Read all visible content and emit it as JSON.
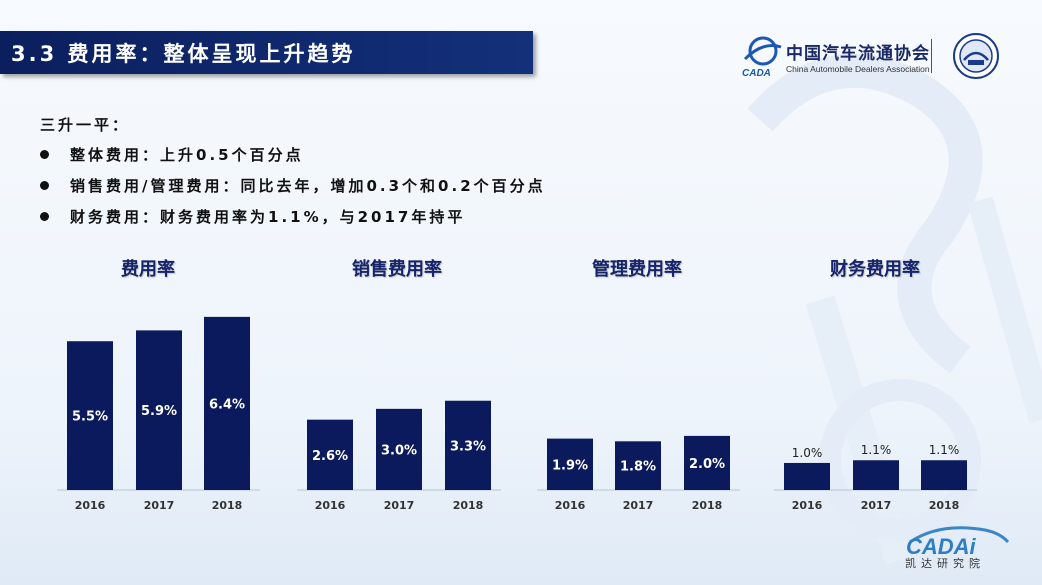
{
  "header": {
    "title": "3.3 费用率：整体呈现上升趋势",
    "org_name_cn": "中国汽车流通协会",
    "org_name_en": "China Automobile Dealers Association",
    "logo_text": "CADA"
  },
  "bullets": {
    "intro": "三升一平：",
    "items": [
      "整体费用：上升0.5个百分点",
      "销售费用/管理费用：同比去年，增加0.3个和0.2个百分点",
      "财务费用：财务费用率为1.1%，与2017年持平"
    ]
  },
  "colors": {
    "bar": "#0b1a5c",
    "title": "#16246b",
    "header_bg": "#0b1f5e"
  },
  "chart_data": [
    {
      "type": "bar",
      "title": "费用率",
      "categories": [
        "2016",
        "2017",
        "2018"
      ],
      "values": [
        5.5,
        5.9,
        6.4
      ],
      "labels": [
        "5.5%",
        "5.9%",
        "6.4%"
      ],
      "label_position": "inside"
    },
    {
      "type": "bar",
      "title": "销售费用率",
      "categories": [
        "2016",
        "2017",
        "2018"
      ],
      "values": [
        2.6,
        3.0,
        3.3
      ],
      "labels": [
        "2.6%",
        "3.0%",
        "3.3%"
      ],
      "label_position": "inside"
    },
    {
      "type": "bar",
      "title": "管理费用率",
      "categories": [
        "2016",
        "2017",
        "2018"
      ],
      "values": [
        1.9,
        1.8,
        2.0
      ],
      "labels": [
        "1.9%",
        "1.8%",
        "2.0%"
      ],
      "label_position": "inside"
    },
    {
      "type": "bar",
      "title": "财务费用率",
      "categories": [
        "2016",
        "2017",
        "2018"
      ],
      "values": [
        1.0,
        1.1,
        1.1
      ],
      "labels": [
        "1.0%",
        "1.1%",
        "1.1%"
      ],
      "label_position": "outside"
    }
  ],
  "footer": {
    "brand": "CADAi",
    "name_cn": "凯达研究院"
  }
}
